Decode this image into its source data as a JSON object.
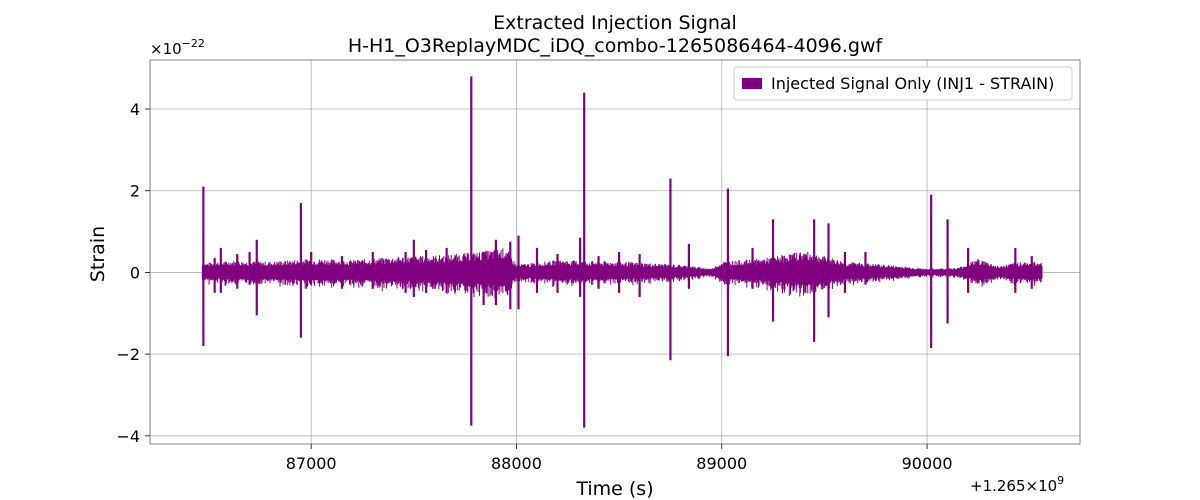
{
  "chart_data": {
    "type": "line",
    "title": "Extracted Injection Signal",
    "subtitle": "H-H1_O3ReplayMDC_iDQ_combo-1265086464-4096.gwf",
    "xlabel": "Time (s)",
    "ylabel": "Strain",
    "x_offset_text": "+1.265×10",
    "x_offset_exp": "9",
    "y_scale_text": "×10",
    "y_scale_exp": "−22",
    "xlim": [
      86215,
      90745
    ],
    "ylim": [
      -4.2,
      5.2
    ],
    "x_ticks": [
      87000,
      88000,
      89000,
      90000
    ],
    "x_tick_labels": [
      "87000",
      "88000",
      "89000",
      "90000"
    ],
    "y_ticks": [
      -4,
      -2,
      0,
      2,
      4
    ],
    "y_tick_labels": [
      "−4",
      "−2",
      "0",
      "2",
      "4"
    ],
    "grid": true,
    "legend_position": "top-right",
    "colors": {
      "series": "#800080",
      "grid": "#b0b0b0",
      "axes": "#808080"
    },
    "series": [
      {
        "name": "Injected Signal Only (INJ1 - STRAIN)",
        "x_range": [
          86470,
          90560
        ],
        "noise_envelope": [
          [
            86470,
            0.12
          ],
          [
            86600,
            0.15
          ],
          [
            86800,
            0.14
          ],
          [
            87000,
            0.18
          ],
          [
            87200,
            0.16
          ],
          [
            87400,
            0.2
          ],
          [
            87600,
            0.22
          ],
          [
            87800,
            0.26
          ],
          [
            87950,
            0.32
          ],
          [
            88000,
            0.1
          ],
          [
            88200,
            0.16
          ],
          [
            88500,
            0.14
          ],
          [
            88800,
            0.1
          ],
          [
            88950,
            0.05
          ],
          [
            89000,
            0.14
          ],
          [
            89200,
            0.18
          ],
          [
            89400,
            0.28
          ],
          [
            89600,
            0.14
          ],
          [
            89800,
            0.1
          ],
          [
            90000,
            0.05
          ],
          [
            90150,
            0.06
          ],
          [
            90250,
            0.18
          ],
          [
            90350,
            0.08
          ],
          [
            90450,
            0.14
          ],
          [
            90560,
            0.14
          ]
        ],
        "spikes": [
          [
            86475,
            2.1,
            -1.8
          ],
          [
            86530,
            0.35,
            -0.5
          ],
          [
            86560,
            0.6,
            -0.5
          ],
          [
            86640,
            0.45,
            -0.4
          ],
          [
            86700,
            0.5,
            -0.3
          ],
          [
            86735,
            0.8,
            -1.05
          ],
          [
            86950,
            1.7,
            -1.6
          ],
          [
            87000,
            0.5,
            -0.3
          ],
          [
            87150,
            0.4,
            -0.4
          ],
          [
            87300,
            0.5,
            -0.4
          ],
          [
            87460,
            0.5,
            -0.5
          ],
          [
            87500,
            0.8,
            -0.6
          ],
          [
            87560,
            0.55,
            -0.5
          ],
          [
            87660,
            0.6,
            -0.5
          ],
          [
            87780,
            4.8,
            -3.75
          ],
          [
            87840,
            0.5,
            -0.8
          ],
          [
            87900,
            0.8,
            -0.8
          ],
          [
            87970,
            0.75,
            -0.9
          ],
          [
            88010,
            0.9,
            -0.9
          ],
          [
            88100,
            0.6,
            -0.5
          ],
          [
            88200,
            0.45,
            -0.5
          ],
          [
            88310,
            0.85,
            -0.6
          ],
          [
            88330,
            4.4,
            -3.8
          ],
          [
            88400,
            0.4,
            -0.4
          ],
          [
            88500,
            0.5,
            -0.5
          ],
          [
            88600,
            0.45,
            -0.6
          ],
          [
            88750,
            2.3,
            -2.15
          ],
          [
            88840,
            0.7,
            -0.4
          ],
          [
            89030,
            2.05,
            -2.05
          ],
          [
            89150,
            0.6,
            -0.4
          ],
          [
            89250,
            1.3,
            -1.2
          ],
          [
            89450,
            1.3,
            -1.7
          ],
          [
            89520,
            1.2,
            -1.1
          ],
          [
            89600,
            0.5,
            -0.5
          ],
          [
            89700,
            0.5,
            -0.3
          ],
          [
            90020,
            1.9,
            -1.85
          ],
          [
            90100,
            1.3,
            -1.25
          ],
          [
            90200,
            0.6,
            -0.5
          ],
          [
            90430,
            0.6,
            -0.5
          ],
          [
            90510,
            0.4,
            -0.4
          ]
        ]
      }
    ]
  }
}
